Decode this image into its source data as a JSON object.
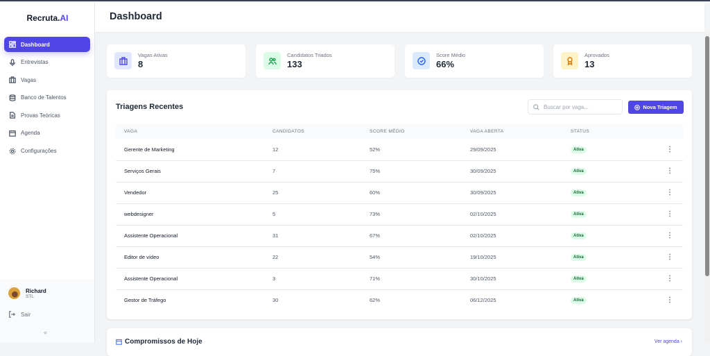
{
  "app": {
    "brand": "Recruta.",
    "brand_accent": "AI",
    "accent_color": "#4f46e5"
  },
  "sidebar": {
    "items": [
      {
        "label": "Dashboard",
        "icon": "dashboard-icon",
        "active": true
      },
      {
        "label": "Entrevistas",
        "icon": "microphone-icon"
      },
      {
        "label": "Vagas",
        "icon": "briefcase-icon"
      },
      {
        "label": "Banco de Talentos",
        "icon": "database-icon"
      },
      {
        "label": "Provas Teóricas",
        "icon": "file-text-icon"
      },
      {
        "label": "Agenda",
        "icon": "calendar-icon"
      },
      {
        "label": "Configurações",
        "icon": "gear-icon"
      }
    ],
    "user": {
      "name": "Richard",
      "role": "STL"
    },
    "logout": "Sair",
    "collapse": "«"
  },
  "header": {
    "title": "Dashboard"
  },
  "stats": [
    {
      "label": "Vagas Ativas",
      "value": "8",
      "icon": "briefcase-icon",
      "color": "#4f46e5"
    },
    {
      "label": "Candidatos Triados",
      "value": "133",
      "icon": "users-icon",
      "color": "#16a34a"
    },
    {
      "label": "Score Médio",
      "value": "66%",
      "icon": "check-circle-icon",
      "color": "#2563eb"
    },
    {
      "label": "Aprovados",
      "value": "13",
      "icon": "award-icon",
      "color": "#d97706"
    }
  ],
  "triagens": {
    "title": "Triagens Recentes",
    "search_placeholder": "Buscar por vaga...",
    "new_button": "Nova Triagem",
    "columns": [
      "VAGA",
      "CANDIDATOS",
      "SCORE MÉDIO",
      "VAGA ABERTA",
      "STATUS"
    ],
    "rows": [
      [
        "Gerente de Marketing",
        "12",
        "52%",
        "29/09/2025",
        "Ativa"
      ],
      [
        "Serviços Gerais",
        "7",
        "75%",
        "30/09/2025",
        "Ativa"
      ],
      [
        "Vendedor",
        "25",
        "60%",
        "30/09/2025",
        "Ativa"
      ],
      [
        "webdesigner",
        "5",
        "73%",
        "02/10/2025",
        "Ativa"
      ],
      [
        "Assistente Operacional",
        "31",
        "67%",
        "02/10/2025",
        "Ativa"
      ],
      [
        "Editor de vídeo",
        "22",
        "54%",
        "19/10/2025",
        "Ativa"
      ],
      [
        "Assistente Operacional",
        "3",
        "71%",
        "30/10/2025",
        "Ativa"
      ],
      [
        "Gestor de Tráfego",
        "30",
        "62%",
        "06/12/2025",
        "Ativa"
      ]
    ]
  },
  "compromissos": {
    "title": "Compromissos de Hoje",
    "link": "Ver agenda ›"
  }
}
